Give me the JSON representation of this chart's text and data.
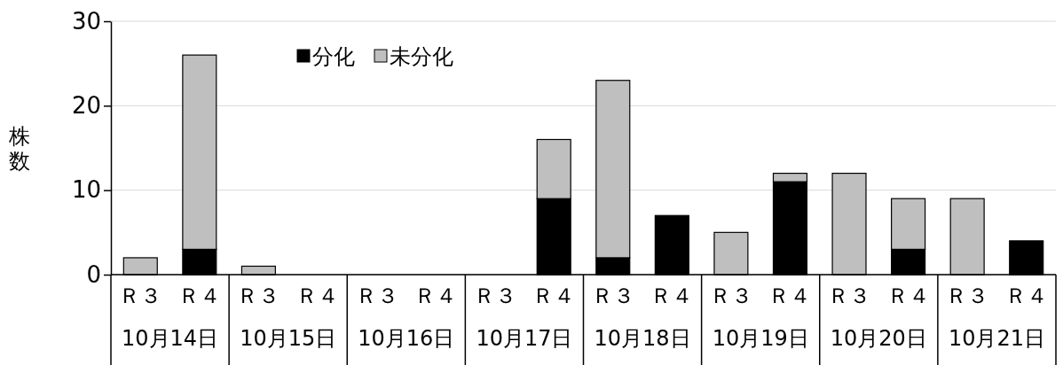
{
  "chart_data": {
    "type": "bar",
    "stacked": true,
    "ylabel": "株数",
    "categories": [
      "Ｒ３",
      "Ｒ４",
      "Ｒ３",
      "Ｒ４",
      "Ｒ３",
      "Ｒ４",
      "Ｒ３",
      "Ｒ４",
      "Ｒ３",
      "Ｒ４",
      "Ｒ３",
      "Ｒ４",
      "Ｒ３",
      "Ｒ４",
      "Ｒ３",
      "Ｒ４"
    ],
    "series": [
      {
        "name": "分化",
        "color": "#000000",
        "values": [
          0,
          3,
          0,
          0,
          0,
          0,
          0,
          9,
          2,
          7,
          0,
          11,
          0,
          3,
          0,
          4
        ]
      },
      {
        "name": "未分化",
        "color": "#bfbfbf",
        "values": [
          2,
          23,
          1,
          0,
          0,
          0,
          0,
          7,
          21,
          0,
          5,
          1,
          12,
          6,
          9,
          0
        ]
      }
    ],
    "annotations": [
      "10月14日",
      "10月15日",
      "10月16日",
      "10月17日",
      "10月18日",
      "10月19日",
      "10月20日",
      "10月21日"
    ],
    "ylim": [
      0,
      30
    ],
    "yticks": [
      0,
      10,
      20,
      30
    ],
    "grid": "y",
    "legend": "top"
  }
}
